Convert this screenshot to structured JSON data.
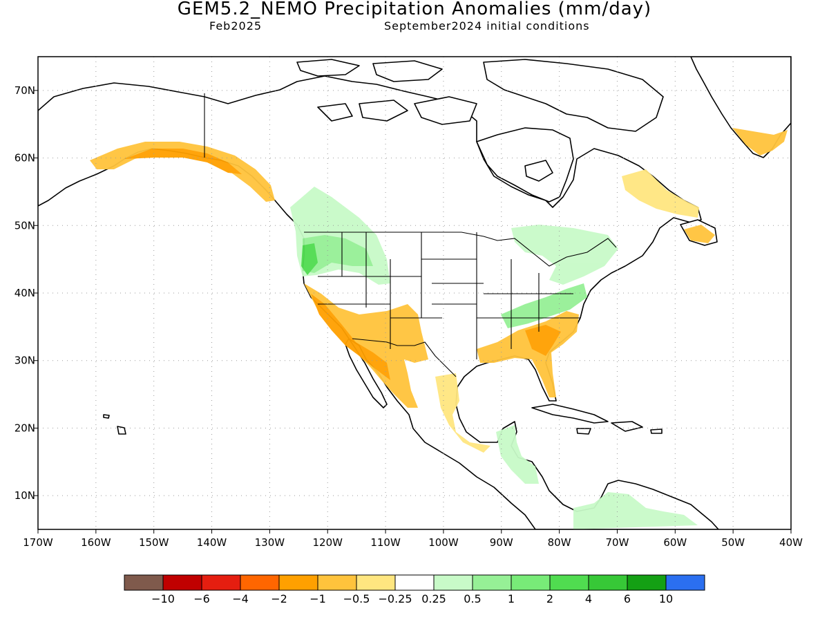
{
  "header": {
    "title": "GEM5.2_NEMO Precipitation Anomalies (mm/day)",
    "month": "Feb2025",
    "init": "September2024 initial conditions"
  },
  "map": {
    "lon_labels": [
      "170W",
      "160W",
      "150W",
      "140W",
      "130W",
      "120W",
      "110W",
      "100W",
      "90W",
      "80W",
      "70W",
      "60W",
      "50W",
      "40W"
    ],
    "lat_labels": [
      "70N",
      "60N",
      "50N",
      "40N",
      "30N",
      "20N",
      "10N"
    ],
    "lon_range": [
      -170,
      -40
    ],
    "lat_range": [
      5,
      75
    ]
  },
  "colorbar": {
    "colors": [
      "#7f5a4c",
      "#c00000",
      "#e51e10",
      "#ff6600",
      "#ffa000",
      "#ffc33c",
      "#ffe680",
      "#ffffff",
      "#c8fac8",
      "#96f096",
      "#78eb78",
      "#50dc50",
      "#37c837",
      "#14a014",
      "#2b6ff0"
    ],
    "labels": [
      "−10",
      "−6",
      "−4",
      "−2",
      "−1",
      "−0.5",
      "−0.25",
      "0.25",
      "0.5",
      "1",
      "2",
      "4",
      "6",
      "10"
    ]
  }
}
